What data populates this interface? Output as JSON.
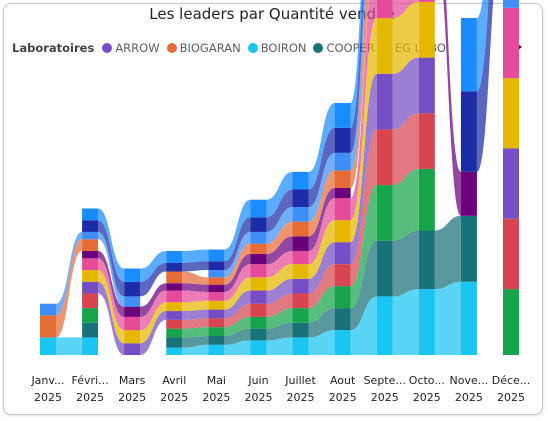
{
  "chart_data": {
    "type": "ribbon",
    "title": "Les leaders par Quantité vendue",
    "legend": {
      "title": "Laboratoires",
      "placement": "top-left",
      "items": [
        {
          "name": "ARROW",
          "color": "#744EC2"
        },
        {
          "name": "BIOGARAN",
          "color": "#E66C37"
        },
        {
          "name": "BOIRON",
          "color": "#1AC5F2"
        },
        {
          "name": "COOPER",
          "color": "#197278"
        },
        {
          "name": "EG LABO",
          "color": "#3F8EF6"
        }
      ]
    },
    "categories": [
      {
        "month": "Janv...",
        "year": "2025"
      },
      {
        "month": "Févri...",
        "year": "2025"
      },
      {
        "month": "Mars",
        "year": "2025"
      },
      {
        "month": "Avril",
        "year": "2025"
      },
      {
        "month": "Mai",
        "year": "2025"
      },
      {
        "month": "Juin",
        "year": "2025"
      },
      {
        "month": "Juillet",
        "year": "2025"
      },
      {
        "month": "Aout",
        "year": "2025"
      },
      {
        "month": "Septe...",
        "year": "2025"
      },
      {
        "month": "Octo...",
        "year": "2025"
      },
      {
        "month": "Nove...",
        "year": "2025"
      },
      {
        "month": "Déce...",
        "year": "2025"
      }
    ],
    "series_colors": [
      "#1AC5F2",
      "#197278",
      "#16A34A",
      "#D64550",
      "#744EC2",
      "#E5B800",
      "#E44C9A",
      "#6B007B",
      "#E66C37",
      "#3F8EF6",
      "#1C2BA6",
      "#1A8CFF"
    ],
    "values": [
      [
        12,
        12,
        0,
        5,
        7,
        10,
        12,
        17,
        40,
        45,
        50,
        0
      ],
      [
        0,
        10,
        0,
        7,
        6,
        8,
        10,
        15,
        38,
        40,
        45,
        0
      ],
      [
        0,
        10,
        0,
        6,
        6,
        8,
        10,
        15,
        38,
        42,
        0,
        45
      ],
      [
        0,
        10,
        0,
        6,
        6,
        9,
        10,
        15,
        38,
        38,
        0,
        48
      ],
      [
        0,
        8,
        8,
        6,
        6,
        9,
        10,
        15,
        38,
        38,
        0,
        48
      ],
      [
        0,
        8,
        9,
        6,
        6,
        9,
        10,
        15,
        38,
        38,
        0,
        48
      ],
      [
        0,
        8,
        9,
        8,
        6,
        9,
        9,
        15,
        38,
        38,
        0,
        48
      ],
      [
        0,
        5,
        7,
        5,
        5,
        7,
        10,
        7,
        0,
        34,
        30,
        0
      ],
      [
        15,
        8,
        0,
        8,
        5,
        7,
        10,
        12,
        40,
        38,
        0,
        0
      ],
      [
        8,
        5,
        7,
        0,
        5,
        8,
        10,
        12,
        40,
        38,
        0,
        48
      ],
      [
        0,
        8,
        10,
        6,
        6,
        10,
        12,
        17,
        42,
        0,
        55,
        55
      ],
      [
        0,
        8,
        9,
        8,
        8,
        12,
        12,
        17,
        40,
        0,
        50,
        57
      ]
    ],
    "ylim": [
      0,
      200
    ]
  }
}
